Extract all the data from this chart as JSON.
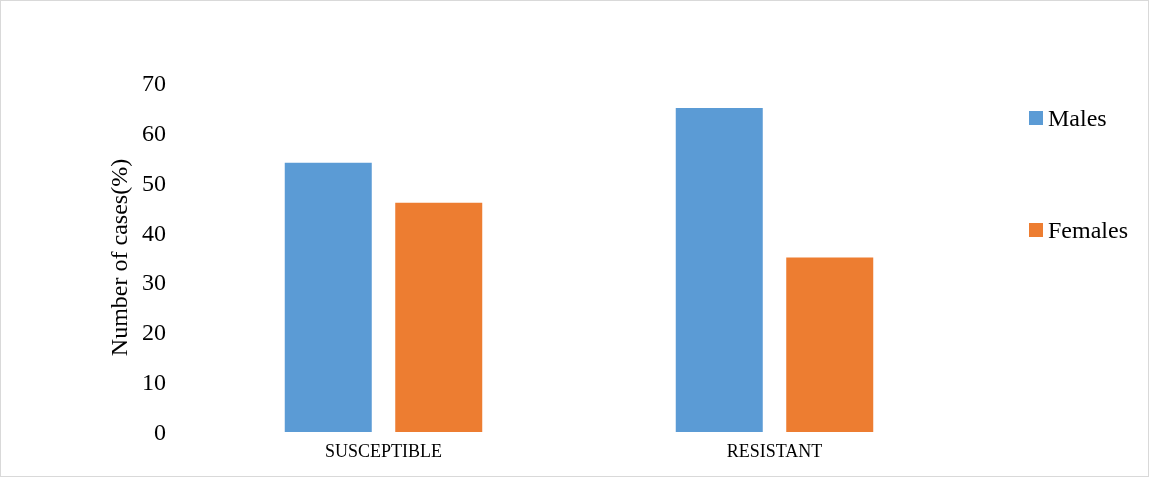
{
  "chart_data": {
    "type": "bar",
    "ylabel": "Number of cases(%)",
    "categories": [
      "SUSCEPTIBLE",
      "RESISTANT"
    ],
    "series": [
      {
        "name": "Males",
        "color": "#5b9bd5",
        "values": [
          54,
          65
        ]
      },
      {
        "name": "Females",
        "color": "#ed7d31",
        "values": [
          46,
          35
        ]
      }
    ],
    "ylim": [
      0,
      70
    ],
    "yticks": [
      0,
      10,
      20,
      30,
      40,
      50,
      60,
      70
    ],
    "grid": false,
    "legend": "right"
  }
}
